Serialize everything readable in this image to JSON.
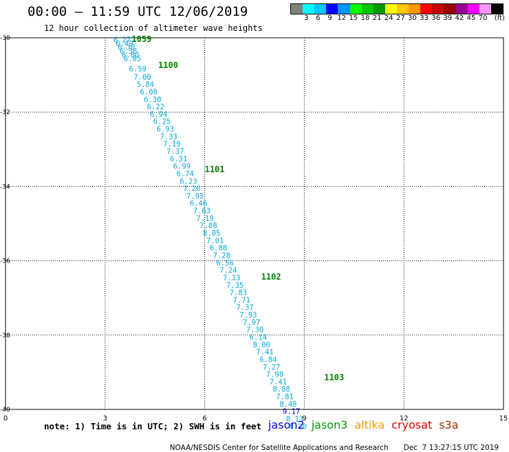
{
  "header": {
    "title": "00:00 – 11:59 UTC 12/06/2019",
    "subtitle": "12 hour collection of altimeter wave heights"
  },
  "legend": {
    "colors": [
      "#808080",
      "#00ffff",
      "#00c8ff",
      "#0000ff",
      "#0096ff",
      "#00ff00",
      "#00c800",
      "#009600",
      "#ffff00",
      "#ffc800",
      "#ff9600",
      "#ff0000",
      "#c80000",
      "#960000",
      "#960096",
      "#ff00ff",
      "#ff96ff",
      "#000000"
    ],
    "labels": [
      "3",
      "6",
      "9",
      "12",
      "15",
      "18",
      "21",
      "24",
      "27",
      "30",
      "33",
      "36",
      "39",
      "42",
      "45",
      "70"
    ],
    "unit": "(ft)"
  },
  "map": {
    "lon_range": [
      0,
      15
    ],
    "lat_range": [
      -40,
      -30
    ],
    "x_ticks": [
      "0",
      "3",
      "6",
      "9",
      "12",
      "15"
    ],
    "y_ticks": [
      "-30",
      "-32",
      "-34",
      "-36",
      "-38",
      "-40"
    ],
    "grid_color": "#000000",
    "value_color": "#00aadd",
    "time_color": "#008000",
    "special_color": "#0000cc"
  },
  "chart_data": {
    "type": "scatter",
    "x_axis": "longitude",
    "y_axis": "latitude",
    "xlim": [
      0,
      15
    ],
    "ylim": [
      -40,
      -30
    ],
    "grid": true,
    "observations": [
      {
        "lon": 3.25,
        "lat": -30.05,
        "swh": "6.27"
      },
      {
        "lon": 3.32,
        "lat": -30.15,
        "swh": "6.49"
      },
      {
        "lon": 3.38,
        "lat": -30.25,
        "swh": "6.30"
      },
      {
        "lon": 3.44,
        "lat": -30.35,
        "swh": "6.38"
      },
      {
        "lon": 3.5,
        "lat": -30.45,
        "swh": "6.80"
      },
      {
        "lon": 3.56,
        "lat": -30.55,
        "swh": "6.85"
      },
      {
        "lon": 3.72,
        "lat": -30.83,
        "swh": "6.59"
      },
      {
        "lon": 3.86,
        "lat": -31.05,
        "swh": "7.00"
      },
      {
        "lon": 3.95,
        "lat": -31.25,
        "swh": "5.84"
      },
      {
        "lon": 4.05,
        "lat": -31.45,
        "swh": "6.08"
      },
      {
        "lon": 4.17,
        "lat": -31.65,
        "swh": "6.30"
      },
      {
        "lon": 4.26,
        "lat": -31.85,
        "swh": "6.22"
      },
      {
        "lon": 4.35,
        "lat": -32.05,
        "swh": "6.94"
      },
      {
        "lon": 4.45,
        "lat": -32.25,
        "swh": "6.25"
      },
      {
        "lon": 4.55,
        "lat": -32.45,
        "swh": "6.93"
      },
      {
        "lon": 4.65,
        "lat": -32.65,
        "swh": "7.33"
      },
      {
        "lon": 4.75,
        "lat": -32.85,
        "swh": "7.19"
      },
      {
        "lon": 4.85,
        "lat": -33.05,
        "swh": "7.37"
      },
      {
        "lon": 4.95,
        "lat": -33.25,
        "swh": "6.31"
      },
      {
        "lon": 5.05,
        "lat": -33.45,
        "swh": "6.99"
      },
      {
        "lon": 5.15,
        "lat": -33.65,
        "swh": "6.74"
      },
      {
        "lon": 5.25,
        "lat": -33.85,
        "swh": "6.23"
      },
      {
        "lon": 5.35,
        "lat": -34.05,
        "swh": "7.26"
      },
      {
        "lon": 5.45,
        "lat": -34.25,
        "swh": "7.93"
      },
      {
        "lon": 5.55,
        "lat": -34.45,
        "swh": "6.46"
      },
      {
        "lon": 5.65,
        "lat": -34.65,
        "swh": "7.63"
      },
      {
        "lon": 5.75,
        "lat": -34.85,
        "swh": "7.19"
      },
      {
        "lon": 5.85,
        "lat": -35.05,
        "swh": "7.88"
      },
      {
        "lon": 5.95,
        "lat": -35.25,
        "swh": "8.05"
      },
      {
        "lon": 6.05,
        "lat": -35.45,
        "swh": "7.01"
      },
      {
        "lon": 6.15,
        "lat": -35.65,
        "swh": "6.88"
      },
      {
        "lon": 6.25,
        "lat": -35.85,
        "swh": "7.28"
      },
      {
        "lon": 6.35,
        "lat": -36.05,
        "swh": "6.56"
      },
      {
        "lon": 6.45,
        "lat": -36.25,
        "swh": "7.24"
      },
      {
        "lon": 6.55,
        "lat": -36.45,
        "swh": "7.13"
      },
      {
        "lon": 6.65,
        "lat": -36.65,
        "swh": "7.35"
      },
      {
        "lon": 6.75,
        "lat": -36.85,
        "swh": "7.83"
      },
      {
        "lon": 6.85,
        "lat": -37.05,
        "swh": "7.71"
      },
      {
        "lon": 6.95,
        "lat": -37.25,
        "swh": "7.37"
      },
      {
        "lon": 7.05,
        "lat": -37.45,
        "swh": "7.93"
      },
      {
        "lon": 7.15,
        "lat": -37.65,
        "swh": "7.97"
      },
      {
        "lon": 7.25,
        "lat": -37.85,
        "swh": "7.30"
      },
      {
        "lon": 7.35,
        "lat": -38.05,
        "swh": "6.14"
      },
      {
        "lon": 7.45,
        "lat": -38.25,
        "swh": "8.00"
      },
      {
        "lon": 7.55,
        "lat": -38.45,
        "swh": "7.41"
      },
      {
        "lon": 7.65,
        "lat": -38.65,
        "swh": "6.84"
      },
      {
        "lon": 7.75,
        "lat": -38.85,
        "swh": "7.27"
      },
      {
        "lon": 7.85,
        "lat": -39.05,
        "swh": "7.98"
      },
      {
        "lon": 7.95,
        "lat": -39.25,
        "swh": "7.41"
      },
      {
        "lon": 8.05,
        "lat": -39.45,
        "swh": "8.88"
      },
      {
        "lon": 8.15,
        "lat": -39.65,
        "swh": "7.81"
      },
      {
        "lon": 8.25,
        "lat": -39.85,
        "swh": "8.48"
      },
      {
        "lon": 8.35,
        "lat": -40.05,
        "swh": "9.17",
        "highlight": true
      },
      {
        "lon": 8.45,
        "lat": -40.25,
        "swh": "8.13"
      },
      {
        "lon": 8.55,
        "lat": -40.45,
        "swh": "8.20"
      }
    ],
    "time_labels": [
      {
        "lon": 3.8,
        "lat": -30.0,
        "text": "1059"
      },
      {
        "lon": 4.6,
        "lat": -30.7,
        "text": "1100"
      },
      {
        "lon": 6.0,
        "lat": -33.5,
        "text": "1101"
      },
      {
        "lon": 7.7,
        "lat": -36.4,
        "text": "1102"
      },
      {
        "lon": 9.6,
        "lat": -39.1,
        "text": "1103"
      }
    ]
  },
  "notes": {
    "text": "note: 1) Time is in UTC; 2) SWH is in feet"
  },
  "satellites": [
    {
      "name": "jason2",
      "color": "#0000dd"
    },
    {
      "name": "jason3",
      "color": "#009900"
    },
    {
      "name": "altika",
      "color": "#ff9900"
    },
    {
      "name": "cryosat",
      "color": "#dd0000"
    },
    {
      "name": "s3a",
      "color": "#993300"
    }
  ],
  "footer": {
    "credit": "NOAA/NESDIS Center for Satellite Applications and Research",
    "timestamp": "Dec  7 13:27:15 UTC 2019"
  }
}
